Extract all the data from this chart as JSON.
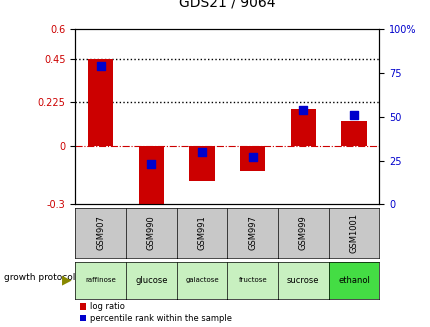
{
  "title": "GDS21 / 9064",
  "samples": [
    "GSM907",
    "GSM990",
    "GSM991",
    "GSM997",
    "GSM999",
    "GSM1001"
  ],
  "protocols": [
    "raffinose",
    "glucose",
    "galactose",
    "fructose",
    "sucrose",
    "ethanol"
  ],
  "protocol_colors": [
    "#c8f0c0",
    "#c8f0c0",
    "#c8f0c0",
    "#c8f0c0",
    "#c8f0c0",
    "#44dd44"
  ],
  "log_ratios": [
    0.45,
    -0.3,
    -0.18,
    -0.13,
    0.19,
    0.13
  ],
  "percentile_ranks": [
    79,
    23,
    30,
    27,
    54,
    51
  ],
  "bar_color": "#cc0000",
  "dot_color": "#0000cc",
  "ylim_left": [
    -0.3,
    0.6
  ],
  "ylim_right": [
    0,
    100
  ],
  "yticks_left": [
    -0.3,
    0,
    0.225,
    0.45,
    0.6
  ],
  "ytick_labels_left": [
    "-0.3",
    "0",
    "0.225",
    "0.45",
    "0.6"
  ],
  "yticks_right": [
    0,
    25,
    50,
    75,
    100
  ],
  "ytick_labels_right": [
    "0",
    "25",
    "50",
    "75",
    "100%"
  ],
  "hlines": [
    0.45,
    0.225
  ],
  "bar_width": 0.5,
  "dot_size": 40,
  "gsm_bg": "#c8c8c8"
}
